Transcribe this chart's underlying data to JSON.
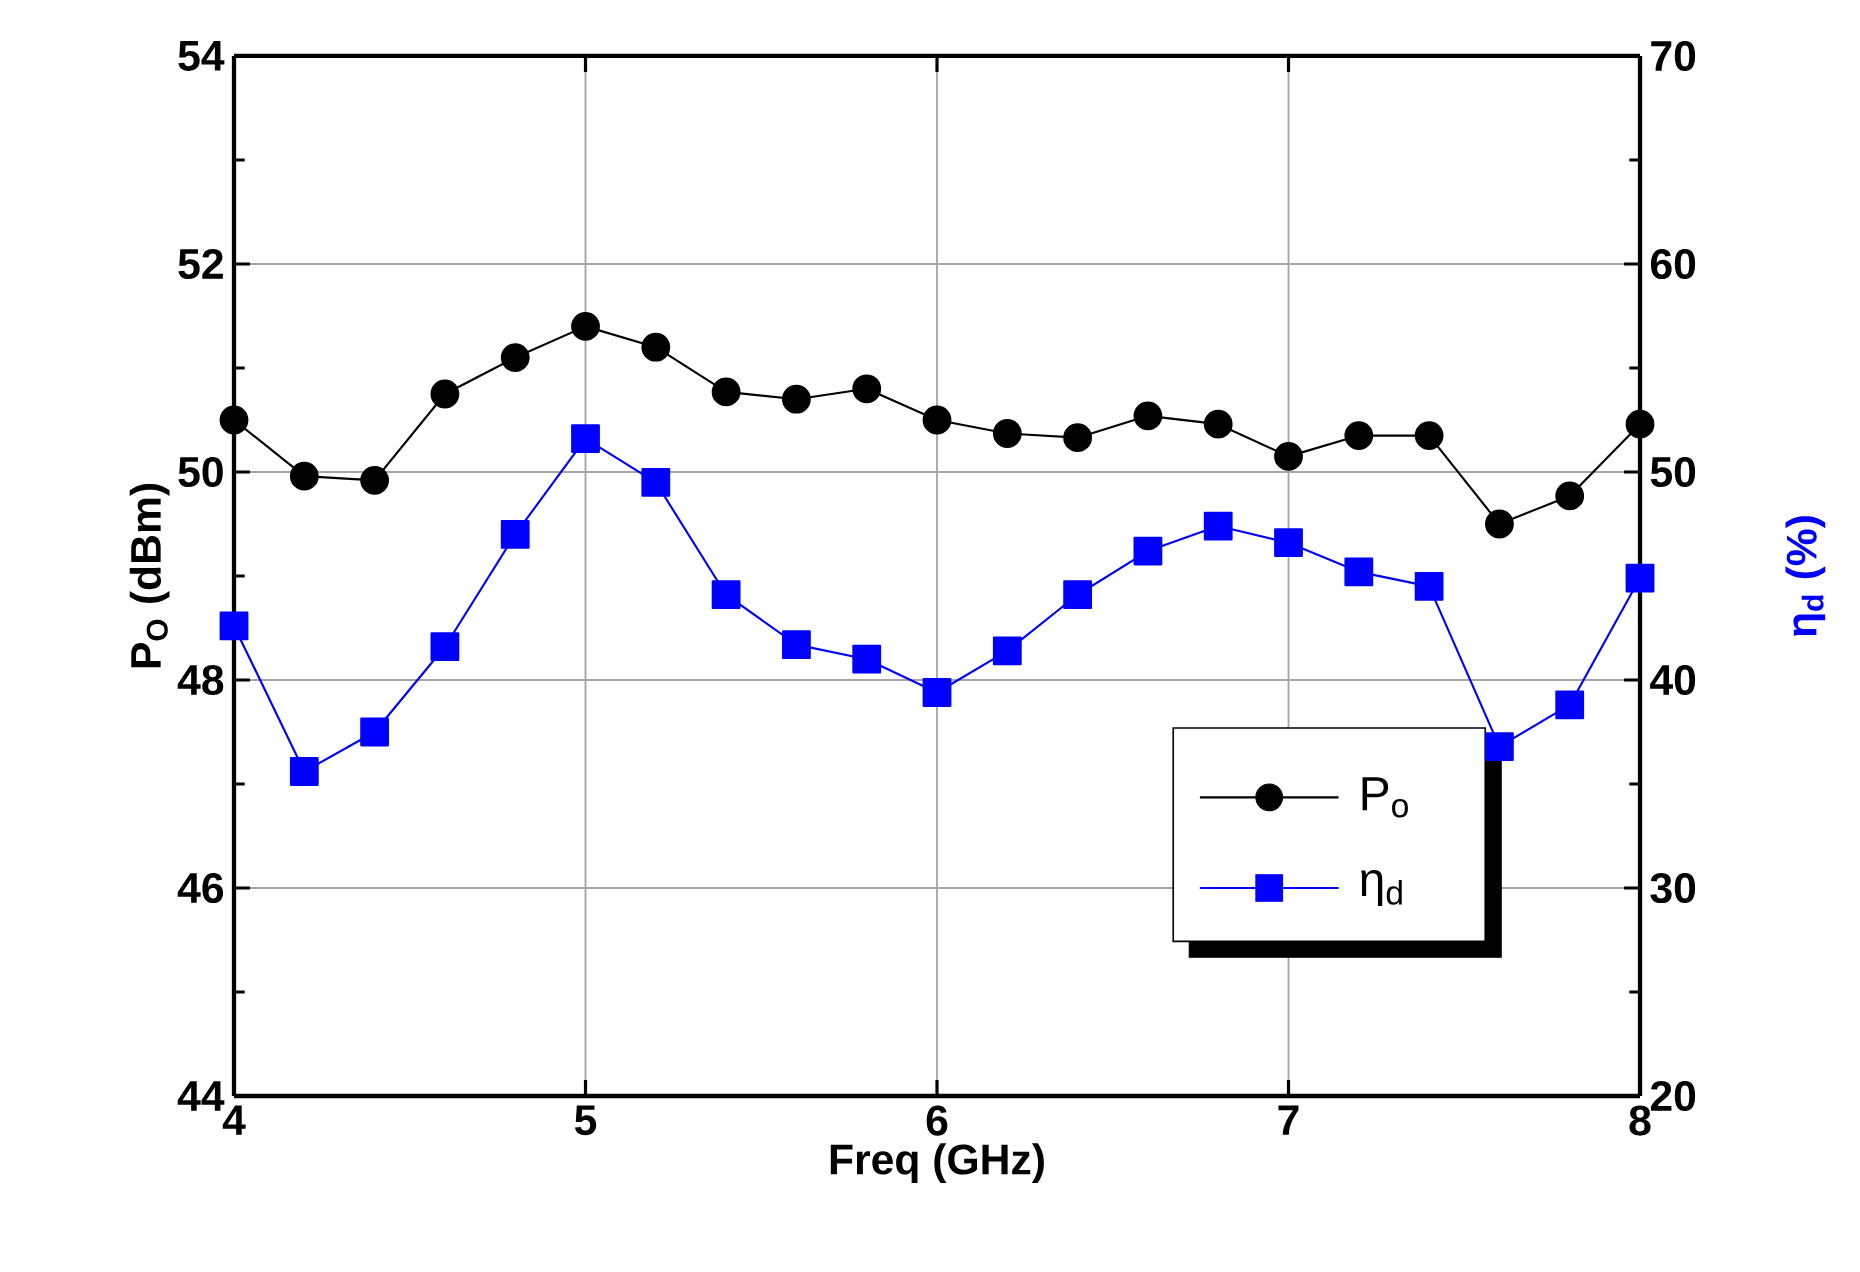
{
  "chart_data": {
    "type": "line",
    "xlabel": "Freq (GHz)",
    "ylabel": "P$_{O}$ (dBm)",
    "y2label": "η$_{d}$ (%)",
    "x": [
      4.0,
      4.2,
      4.4,
      4.6,
      4.8,
      5.0,
      5.2,
      5.4,
      5.6,
      5.8,
      6.0,
      6.2,
      6.4,
      6.6,
      6.8,
      7.0,
      7.2,
      7.4,
      7.6,
      7.8,
      8.0
    ],
    "series": [
      {
        "name": "P$_{o}$",
        "color": "#000000",
        "marker": "circle",
        "values": [
          50.5,
          49.96,
          49.92,
          50.75,
          51.1,
          51.4,
          51.2,
          50.77,
          50.7,
          50.8,
          50.5,
          50.37,
          50.33,
          50.54,
          50.46,
          50.15,
          50.35,
          50.35,
          49.5,
          49.77,
          50.46
        ]
      },
      {
        "name": "η$_{d}$",
        "color": "#0000ff",
        "marker": "square",
        "axis": "y2",
        "values": [
          42.6,
          35.6,
          37.5,
          41.6,
          47.0,
          51.6,
          49.5,
          44.1,
          41.7,
          41.0,
          39.4,
          41.4,
          44.1,
          46.2,
          47.4,
          46.6,
          45.2,
          44.5,
          36.8,
          38.8,
          44.9
        ]
      }
    ],
    "xlim": [
      4,
      8
    ],
    "xticks": [
      4,
      5,
      6,
      7,
      8
    ],
    "ylim": [
      44,
      54
    ],
    "yticks": [
      44,
      46,
      48,
      50,
      52,
      54
    ],
    "y2lim": [
      20,
      70
    ],
    "y2ticks": [
      20,
      30,
      40,
      50,
      60,
      70
    ],
    "grid": true,
    "legend": "bottom right"
  }
}
